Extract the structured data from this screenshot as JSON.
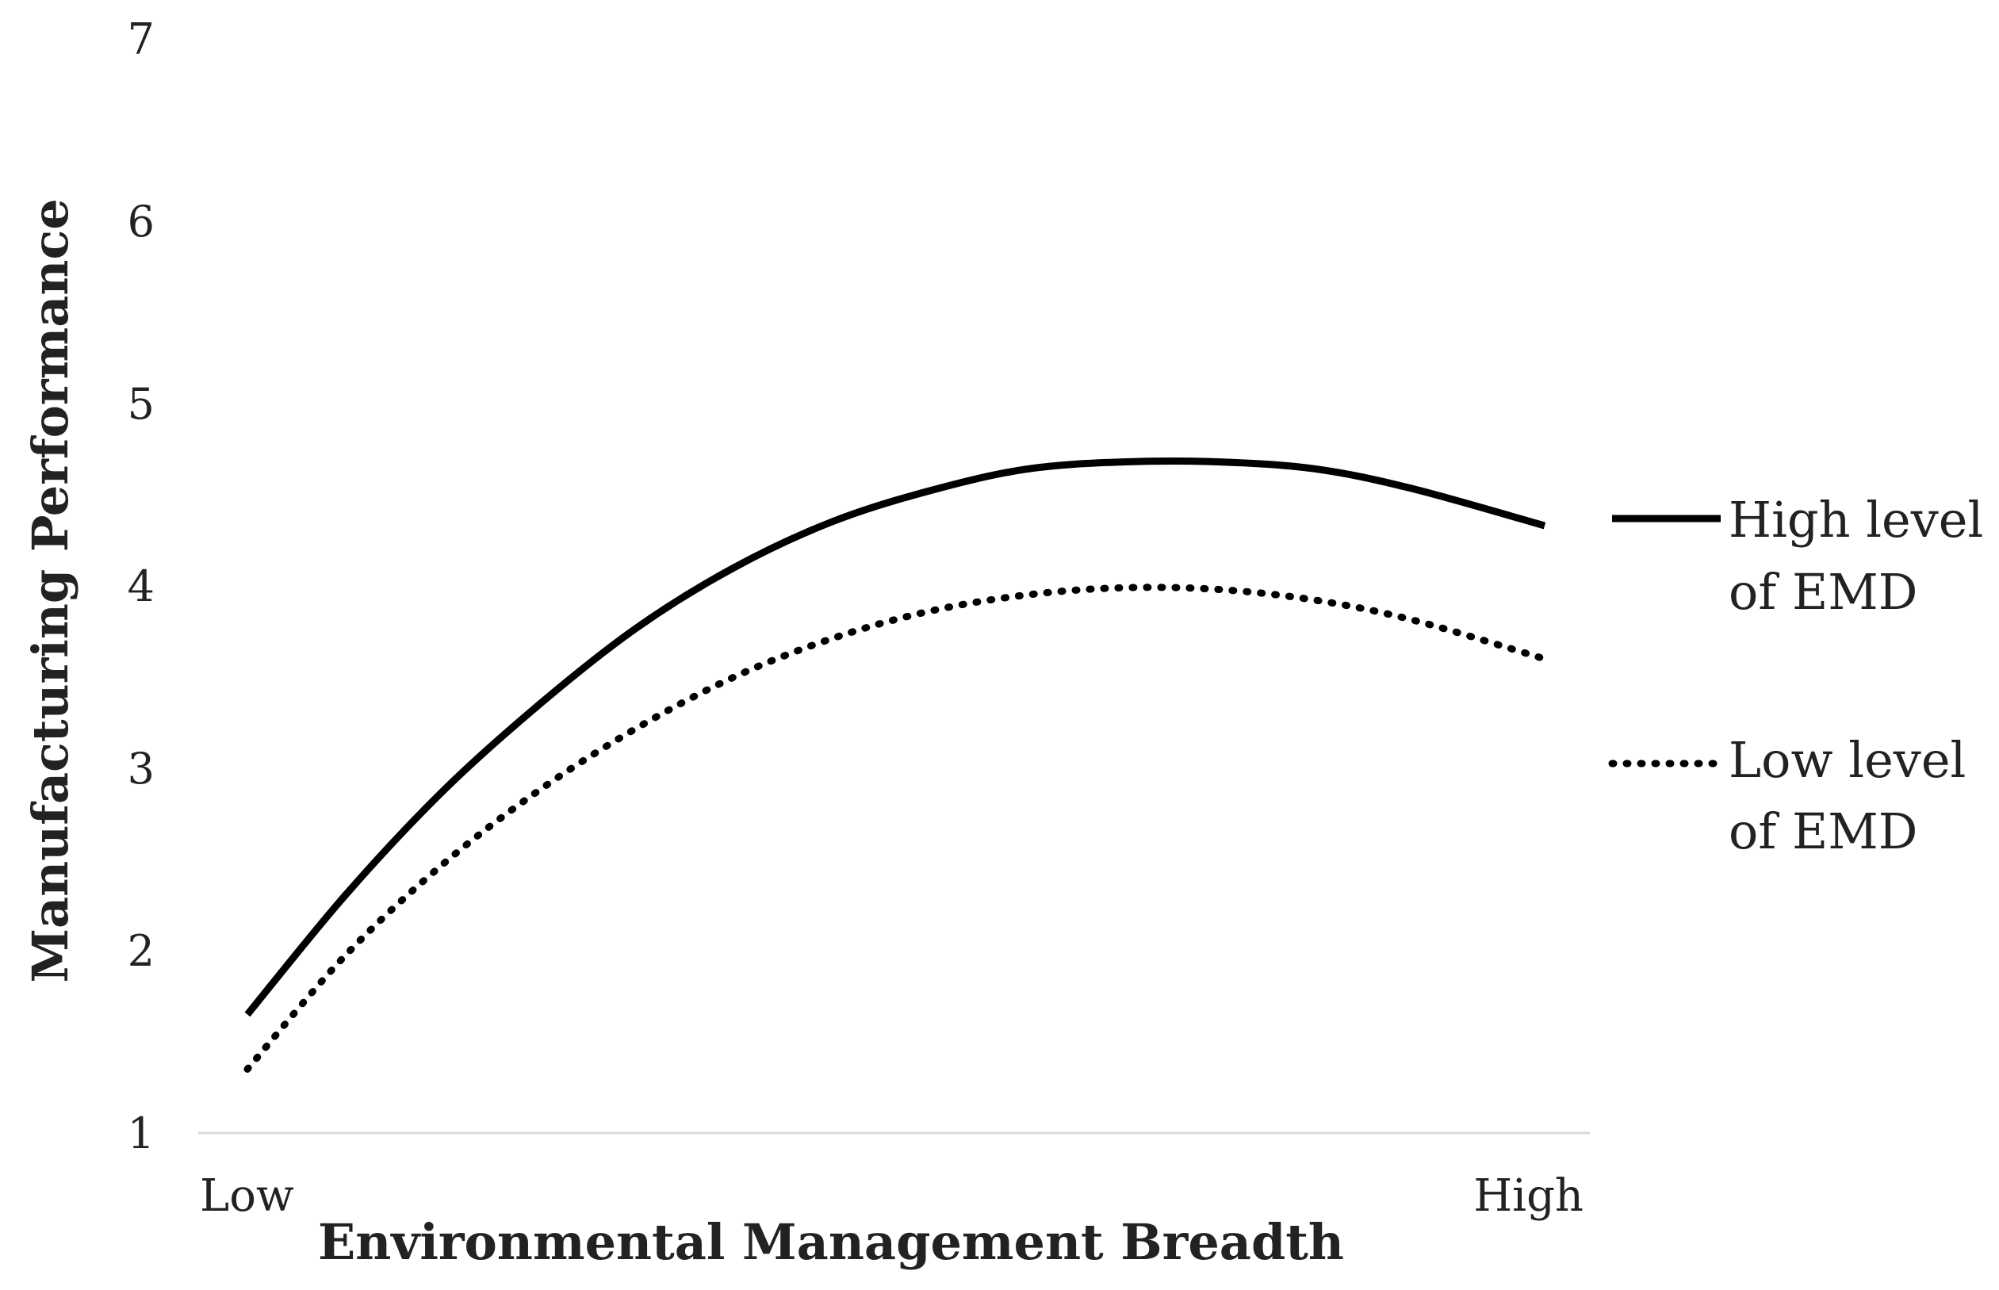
{
  "chart_data": {
    "type": "line",
    "title": "",
    "xlabel": "Environmental Management Breadth",
    "ylabel": "Manufacturing Performance",
    "x_categories": [
      "Low",
      "High"
    ],
    "x_range": [
      0,
      1
    ],
    "ylim": [
      1,
      7
    ],
    "yticks": [
      1,
      2,
      3,
      4,
      5,
      6,
      7
    ],
    "grid": false,
    "legend_position": "right",
    "series": [
      {
        "name_lines": [
          "High level",
          "of EMD"
        ],
        "style": "solid",
        "color": "#000000",
        "x": [
          0.0,
          0.075,
          0.15,
          0.225,
          0.3,
          0.375,
          0.45,
          0.525,
          0.6,
          0.675,
          0.75,
          0.825,
          0.9,
          1.0
        ],
        "y": [
          1.65,
          2.3,
          2.87,
          3.35,
          3.77,
          4.1,
          4.35,
          4.52,
          4.64,
          4.68,
          4.68,
          4.64,
          4.53,
          4.33
        ]
      },
      {
        "name_lines": [
          "Low level",
          "of EMD"
        ],
        "style": "dotted",
        "color": "#000000",
        "x": [
          0.0,
          0.075,
          0.15,
          0.225,
          0.3,
          0.375,
          0.45,
          0.525,
          0.6,
          0.675,
          0.75,
          0.825,
          0.9,
          1.0
        ],
        "y": [
          1.35,
          1.97,
          2.47,
          2.88,
          3.22,
          3.5,
          3.71,
          3.86,
          3.95,
          3.99,
          3.98,
          3.92,
          3.81,
          3.6
        ]
      }
    ]
  }
}
